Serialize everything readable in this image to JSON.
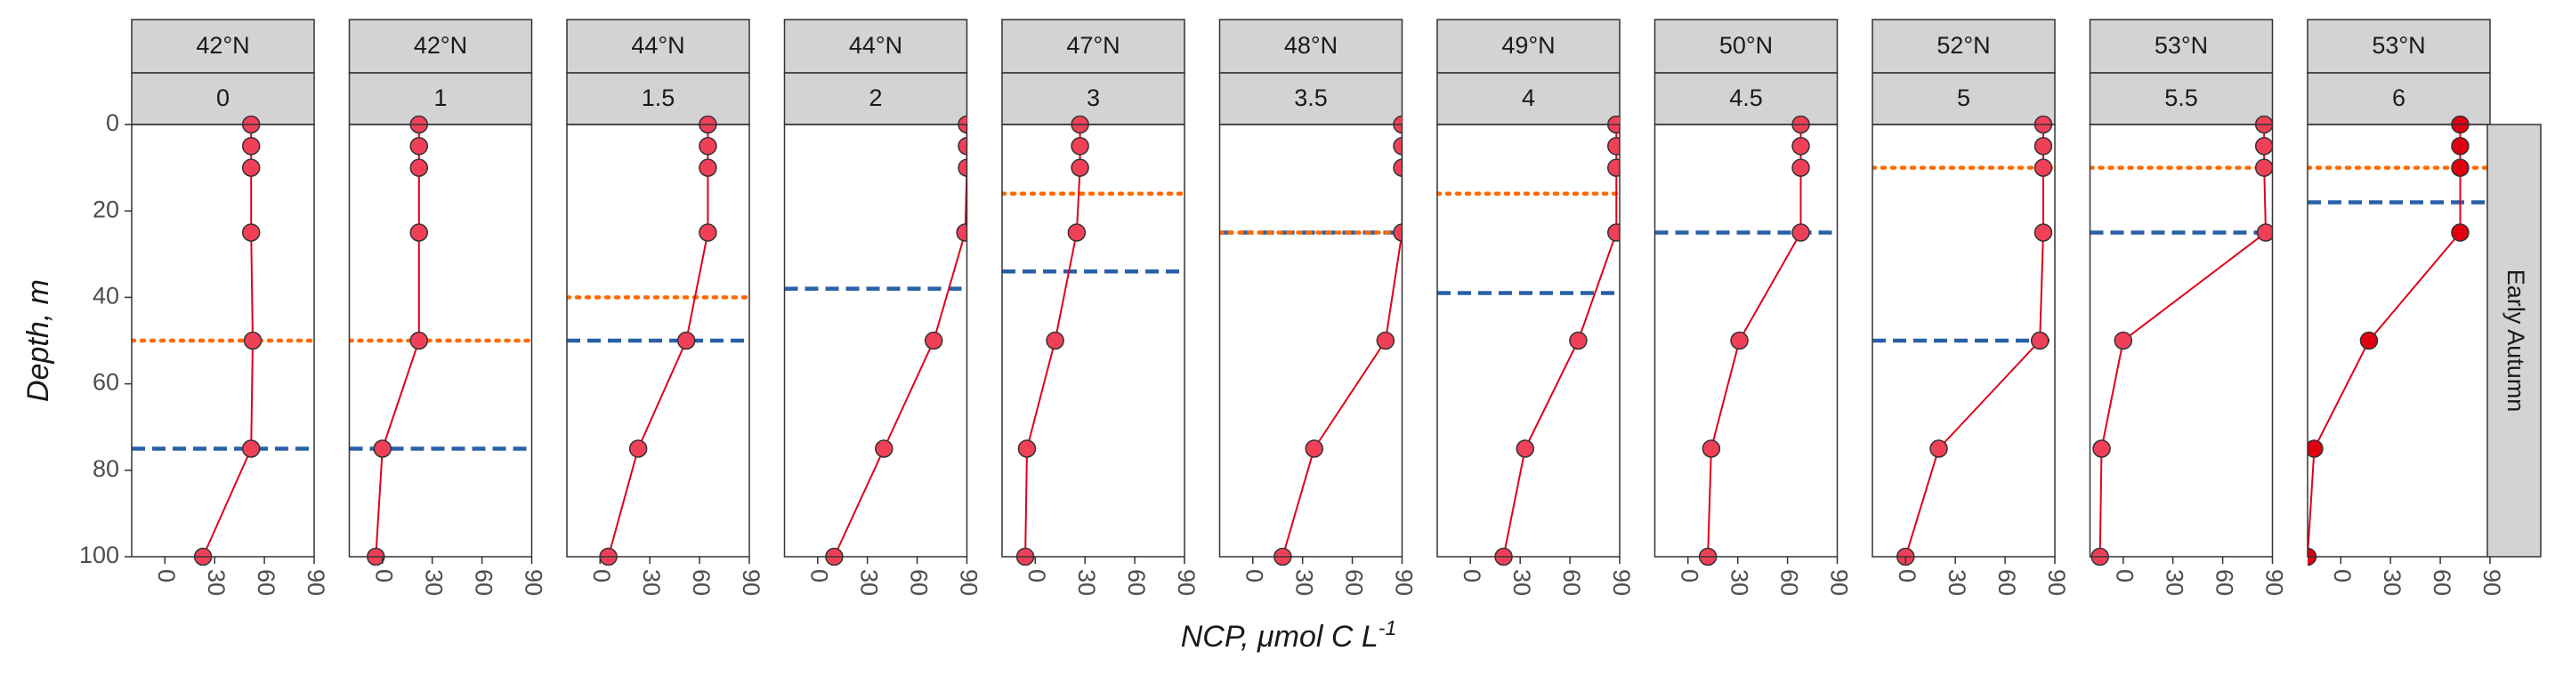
{
  "chart_data": {
    "type": "scatter",
    "xlabel": "NCP, μmol C L",
    "xlabel_superscript": "-1",
    "ylabel": "Depth, m",
    "row_strip": "Early Autumn",
    "xlim": [
      -20,
      90
    ],
    "ylim": [
      100,
      0
    ],
    "xticks": [
      0,
      30,
      60,
      90
    ],
    "yticks": [
      0,
      20,
      40,
      60,
      80,
      100
    ],
    "grid": false,
    "colors": {
      "points": "#f04058",
      "points_last_panel": "#e00010",
      "line": "#e0001a",
      "dotted_line": "#ff6a00",
      "dashed_line": "#2860a8",
      "strip_fill": "#d3d3d3"
    },
    "panels": [
      {
        "lat": "42°N",
        "label": "0",
        "dotted_depth": 50,
        "dashed_depth": 75,
        "points": [
          {
            "x": 52,
            "y": 0
          },
          {
            "x": 52,
            "y": 5
          },
          {
            "x": 52,
            "y": 10
          },
          {
            "x": 52,
            "y": 25
          },
          {
            "x": 53,
            "y": 50
          },
          {
            "x": 52,
            "y": 75
          },
          {
            "x": 23,
            "y": 100
          }
        ]
      },
      {
        "lat": "42°N",
        "label": "1",
        "dotted_depth": 50,
        "dashed_depth": 75,
        "points": [
          {
            "x": 22,
            "y": 0
          },
          {
            "x": 22,
            "y": 5
          },
          {
            "x": 22,
            "y": 10
          },
          {
            "x": 22,
            "y": 25
          },
          {
            "x": 22,
            "y": 50
          },
          {
            "x": 0,
            "y": 75
          },
          {
            "x": -4,
            "y": 100
          }
        ]
      },
      {
        "lat": "44°N",
        "label": "1.5",
        "dotted_depth": 40,
        "dashed_depth": 50,
        "points": [
          {
            "x": 65,
            "y": 0
          },
          {
            "x": 65,
            "y": 5
          },
          {
            "x": 65,
            "y": 10
          },
          {
            "x": 65,
            "y": 25
          },
          {
            "x": 52,
            "y": 50
          },
          {
            "x": 23,
            "y": 75
          },
          {
            "x": 5,
            "y": 100
          }
        ]
      },
      {
        "lat": "44°N",
        "label": "2",
        "dotted_depth": null,
        "dashed_depth": 38,
        "points": [
          {
            "x": 90,
            "y": 0
          },
          {
            "x": 90,
            "y": 5
          },
          {
            "x": 90,
            "y": 10
          },
          {
            "x": 89,
            "y": 25
          },
          {
            "x": 70,
            "y": 50
          },
          {
            "x": 40,
            "y": 75
          },
          {
            "x": 10,
            "y": 100
          }
        ]
      },
      {
        "lat": "47°N",
        "label": "3",
        "dotted_depth": 16,
        "dashed_depth": 34,
        "points": [
          {
            "x": 27,
            "y": 0
          },
          {
            "x": 27,
            "y": 5
          },
          {
            "x": 27,
            "y": 10
          },
          {
            "x": 25,
            "y": 25
          },
          {
            "x": 12,
            "y": 50
          },
          {
            "x": -5,
            "y": 75
          },
          {
            "x": -6,
            "y": 100
          }
        ]
      },
      {
        "lat": "48°N",
        "label": "3.5",
        "dotted_depth": 25,
        "dashed_depth": 25,
        "points": [
          {
            "x": 90,
            "y": 0
          },
          {
            "x": 90,
            "y": 5
          },
          {
            "x": 90,
            "y": 10
          },
          {
            "x": 90,
            "y": 25
          },
          {
            "x": 80,
            "y": 50
          },
          {
            "x": 37,
            "y": 75
          },
          {
            "x": 18,
            "y": 100
          }
        ]
      },
      {
        "lat": "49°N",
        "label": "4",
        "dotted_depth": 16,
        "dashed_depth": 39,
        "points": [
          {
            "x": 88,
            "y": 0
          },
          {
            "x": 88,
            "y": 5
          },
          {
            "x": 88,
            "y": 10
          },
          {
            "x": 88,
            "y": 25
          },
          {
            "x": 65,
            "y": 50
          },
          {
            "x": 33,
            "y": 75
          },
          {
            "x": 20,
            "y": 100
          }
        ]
      },
      {
        "lat": "50°N",
        "label": "4.5",
        "dotted_depth": null,
        "dashed_depth": 25,
        "points": [
          {
            "x": 68,
            "y": 0
          },
          {
            "x": 68,
            "y": 5
          },
          {
            "x": 68,
            "y": 10
          },
          {
            "x": 68,
            "y": 25
          },
          {
            "x": 31,
            "y": 50
          },
          {
            "x": 14,
            "y": 75
          },
          {
            "x": 12,
            "y": 100
          }
        ]
      },
      {
        "lat": "52°N",
        "label": "5",
        "dotted_depth": 10,
        "dashed_depth": 50,
        "points": [
          {
            "x": 83,
            "y": 0
          },
          {
            "x": 83,
            "y": 5
          },
          {
            "x": 83,
            "y": 10
          },
          {
            "x": 83,
            "y": 25
          },
          {
            "x": 81,
            "y": 50
          },
          {
            "x": 20,
            "y": 75
          },
          {
            "x": 0,
            "y": 100
          }
        ]
      },
      {
        "lat": "53°N",
        "label": "5.5",
        "dotted_depth": 10,
        "dashed_depth": 25,
        "points": [
          {
            "x": 85,
            "y": 0
          },
          {
            "x": 85,
            "y": 5
          },
          {
            "x": 85,
            "y": 10
          },
          {
            "x": 86,
            "y": 25
          },
          {
            "x": 0,
            "y": 50
          },
          {
            "x": -13,
            "y": 75
          },
          {
            "x": -14,
            "y": 100
          }
        ]
      },
      {
        "lat": "53°N",
        "label": "6",
        "dotted_depth": 10,
        "dashed_depth": 18,
        "points": [
          {
            "x": 72,
            "y": 0
          },
          {
            "x": 72,
            "y": 5
          },
          {
            "x": 72,
            "y": 10
          },
          {
            "x": 72,
            "y": 25
          },
          {
            "x": 17,
            "y": 50
          },
          {
            "x": -16,
            "y": 75
          },
          {
            "x": -20,
            "y": 100
          }
        ]
      }
    ]
  }
}
